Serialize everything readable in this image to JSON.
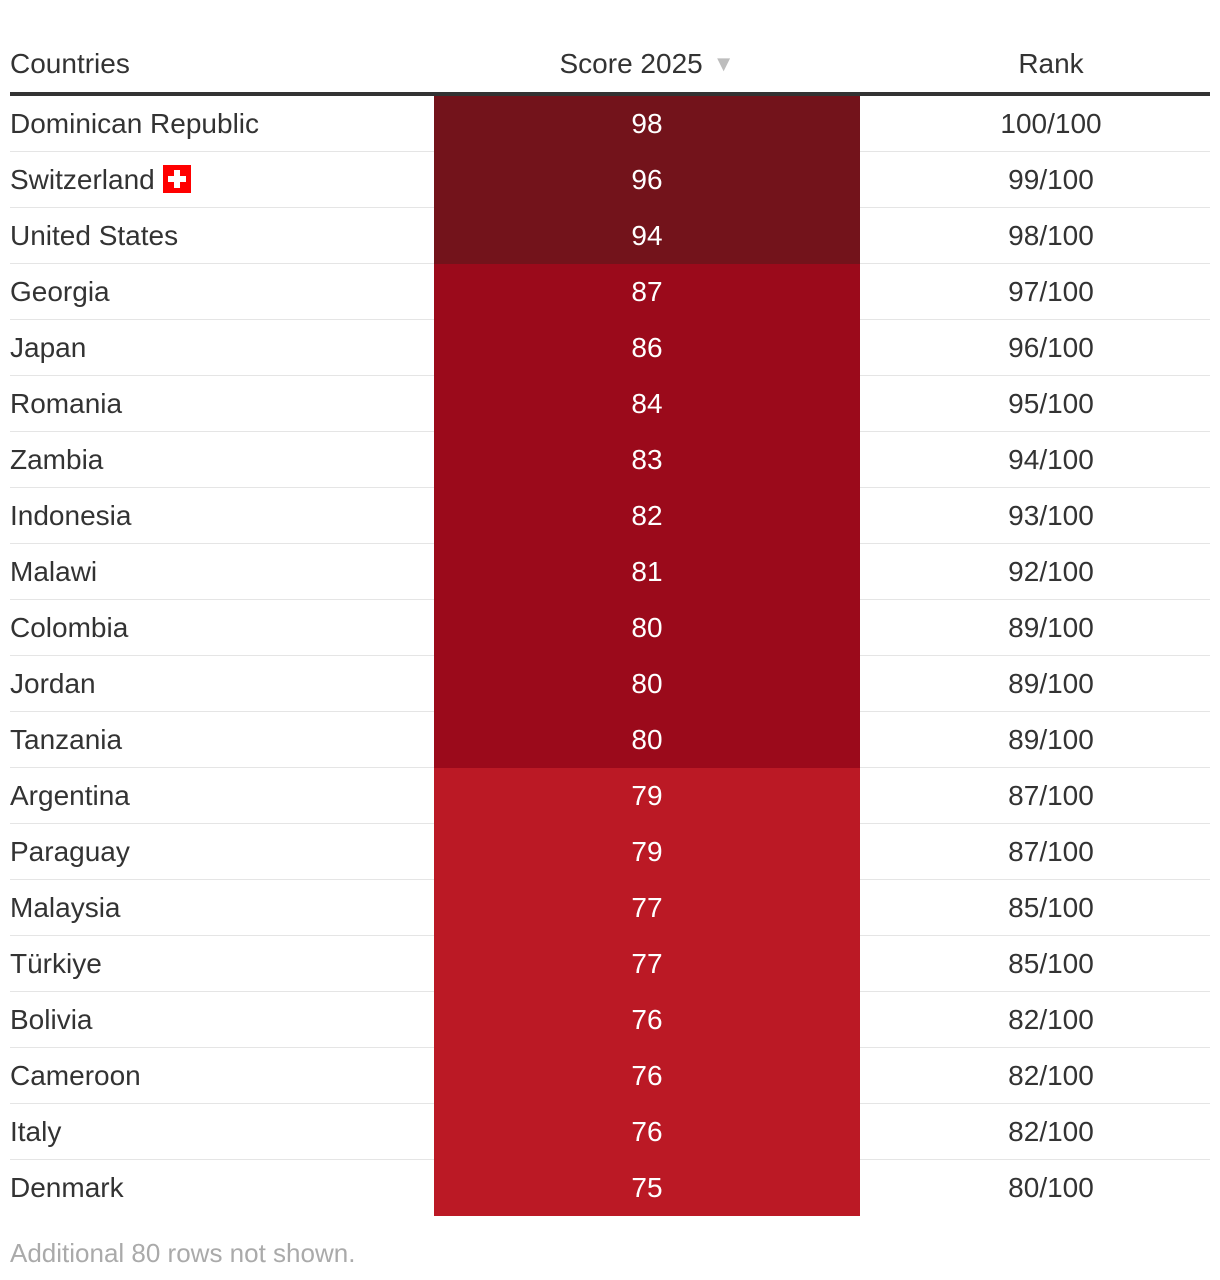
{
  "table": {
    "headers": {
      "country": "Countries",
      "score": "Score 2025",
      "rank": "Rank"
    },
    "sort_icon": "sort-desc-triangle",
    "colors": {
      "band_high": "#73131b",
      "band_mid": "#9b0a1b",
      "band_low": "#bb1925",
      "header_rule": "#333333"
    },
    "footnote": "Additional 80 rows not shown."
  },
  "chart_data": {
    "type": "table",
    "columns": [
      "Countries",
      "Score 2025",
      "Rank"
    ],
    "rows": [
      {
        "country": "Dominican Republic",
        "score": "98",
        "rank": "100/100",
        "flag": ""
      },
      {
        "country": "Switzerland",
        "score": "96",
        "rank": "99/100",
        "flag": "swiss-flag-icon"
      },
      {
        "country": "United States",
        "score": "94",
        "rank": "98/100",
        "flag": ""
      },
      {
        "country": "Georgia",
        "score": "87",
        "rank": "97/100",
        "flag": ""
      },
      {
        "country": "Japan",
        "score": "86",
        "rank": "96/100",
        "flag": ""
      },
      {
        "country": "Romania",
        "score": "84",
        "rank": "95/100",
        "flag": ""
      },
      {
        "country": "Zambia",
        "score": "83",
        "rank": "94/100",
        "flag": ""
      },
      {
        "country": "Indonesia",
        "score": "82",
        "rank": "93/100",
        "flag": ""
      },
      {
        "country": "Malawi",
        "score": "81",
        "rank": "92/100",
        "flag": ""
      },
      {
        "country": "Colombia",
        "score": "80",
        "rank": "89/100",
        "flag": ""
      },
      {
        "country": "Jordan",
        "score": "80",
        "rank": "89/100",
        "flag": ""
      },
      {
        "country": "Tanzania",
        "score": "80",
        "rank": "89/100",
        "flag": ""
      },
      {
        "country": "Argentina",
        "score": "79",
        "rank": "87/100",
        "flag": ""
      },
      {
        "country": "Paraguay",
        "score": "79",
        "rank": "87/100",
        "flag": ""
      },
      {
        "country": "Malaysia",
        "score": "77",
        "rank": "85/100",
        "flag": ""
      },
      {
        "country": "Türkiye",
        "score": "77",
        "rank": "85/100",
        "flag": ""
      },
      {
        "country": "Bolivia",
        "score": "76",
        "rank": "82/100",
        "flag": ""
      },
      {
        "country": "Cameroon",
        "score": "76",
        "rank": "82/100",
        "flag": ""
      },
      {
        "country": "Italy",
        "score": "76",
        "rank": "82/100",
        "flag": ""
      },
      {
        "country": "Denmark",
        "score": "75",
        "rank": "80/100",
        "flag": ""
      }
    ]
  }
}
